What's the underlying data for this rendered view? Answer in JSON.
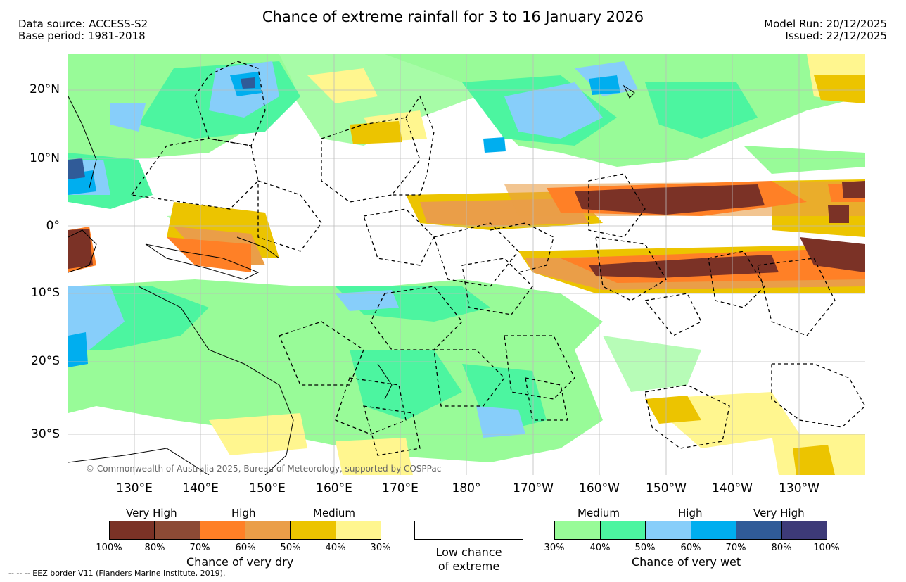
{
  "header": {
    "title": "Chance of extreme rainfall for 3 to 16 January 2026",
    "data_source": "Data source: ACCESS-S2",
    "base_period": "Base period: 1981-2018",
    "model_run": "Model Run: 20/12/2025",
    "issued": "Issued: 22/12/2025"
  },
  "map": {
    "lat_labels": [
      "20°N",
      "10°N",
      "0°",
      "10°S",
      "20°S",
      "30°S"
    ],
    "lon_labels": [
      "130°E",
      "140°E",
      "150°E",
      "160°E",
      "170°E",
      "180°",
      "170°W",
      "160°W",
      "150°W",
      "140°W",
      "130°W"
    ],
    "copyright": "© Commonwealth of Australia 2025, Bureau of Meteorology, supported by COSPPac",
    "eez_note": "--  --  -- EEZ border V11 (Flanders Marine Institute, 2019).",
    "colors": {
      "dry_vh_100": "#7b3226",
      "dry_vh_80": "#8c4a35",
      "dry_high_70": "#ff8026",
      "dry_high_60": "#ea9e48",
      "dry_med_50": "#ecc400",
      "dry_med_40": "#fff68f",
      "wet_med_30": "#98fb98",
      "wet_med_40": "#4cf5a0",
      "wet_high_50": "#87cefa",
      "wet_high_60": "#00aeef",
      "wet_vh_70": "#305b98",
      "wet_vh_80": "#3d3a78",
      "land": "#ffffff",
      "ocean": "#ffffff"
    }
  },
  "legend": {
    "dry": {
      "group_labels": [
        "Very High",
        "High",
        "Medium"
      ],
      "ticks": [
        "100%",
        "80%",
        "70%",
        "60%",
        "50%",
        "40%",
        "30%"
      ],
      "title": "Chance of very dry",
      "colors": [
        "#7b3226",
        "#8c4a35",
        "#ff8026",
        "#ea9e48",
        "#ecc400",
        "#fff68f"
      ]
    },
    "low": {
      "label_line1": "Low chance",
      "label_line2": "of extreme"
    },
    "wet": {
      "group_labels": [
        "Medium",
        "High",
        "Very High"
      ],
      "ticks": [
        "30%",
        "40%",
        "50%",
        "60%",
        "70%",
        "80%",
        "100%"
      ],
      "title": "Chance of very wet",
      "colors": [
        "#98fb98",
        "#4cf5a0",
        "#87cefa",
        "#00aeef",
        "#305b98",
        "#3d3a78"
      ]
    }
  }
}
